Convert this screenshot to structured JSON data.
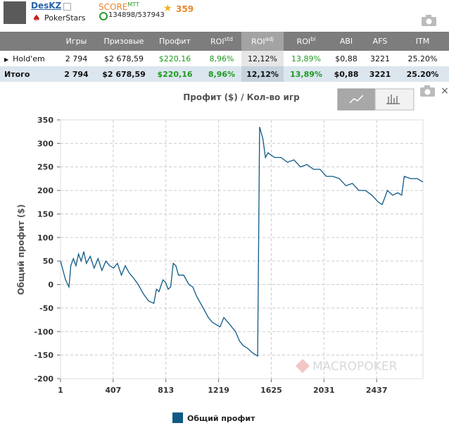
{
  "header": {
    "player": "DesKZ",
    "room": "PokerStars",
    "score_label": "SCORE",
    "score_sup": "MTT",
    "rank": "134898/537943",
    "stars": "359"
  },
  "table": {
    "columns": [
      {
        "base": "Игры"
      },
      {
        "base": "Призовые"
      },
      {
        "base": "Профит"
      },
      {
        "base": "ROI",
        "sup": "std"
      },
      {
        "base": "ROI",
        "sup": "adj"
      },
      {
        "base": "ROI",
        "sup": "bi"
      },
      {
        "base": "ABI"
      },
      {
        "base": "AFS"
      },
      {
        "base": "ITM"
      }
    ],
    "rows": [
      [
        "Hold'em",
        "2 794",
        "$2 678,59",
        "$220,16",
        "8,96%",
        "12,12%",
        "13,89%",
        "$0,88",
        "3221",
        "25.20%"
      ],
      [
        "Итого",
        "2 794",
        "$2 678,59",
        "$220,16",
        "8,96%",
        "12,12%",
        "13,89%",
        "$0,88",
        "3221",
        "25.20%"
      ]
    ]
  },
  "chart_data": {
    "type": "line",
    "title": "Профит ($) / Кол-во игр",
    "y_label": "Общий профит ($)",
    "watermark": "MACROPOKER",
    "grid": true,
    "x": [
      1,
      20,
      40,
      66,
      80,
      100,
      120,
      140,
      160,
      180,
      200,
      230,
      260,
      290,
      320,
      350,
      380,
      410,
      440,
      470,
      500,
      530,
      560,
      600,
      640,
      680,
      720,
      740,
      760,
      790,
      810,
      830,
      850,
      870,
      890,
      910,
      950,
      990,
      1020,
      1050,
      1080,
      1110,
      1140,
      1170,
      1200,
      1230,
      1260,
      1290,
      1320,
      1350,
      1380,
      1410,
      1440,
      1480,
      1520,
      1525,
      1535,
      1560,
      1580,
      1600,
      1650,
      1700,
      1750,
      1800,
      1850,
      1900,
      1950,
      2000,
      2050,
      2100,
      2150,
      2200,
      2250,
      2300,
      2350,
      2400,
      2450,
      2480,
      2520,
      2560,
      2600,
      2630,
      2650,
      2700,
      2750,
      2794
    ],
    "series": [
      {
        "name": "Общий профит",
        "color": "#0e5a85",
        "values": [
          50,
          30,
          10,
          -5,
          40,
          55,
          40,
          65,
          50,
          70,
          45,
          60,
          35,
          55,
          30,
          50,
          40,
          35,
          45,
          20,
          40,
          25,
          15,
          0,
          -20,
          -35,
          -40,
          -10,
          -15,
          10,
          5,
          -10,
          -5,
          45,
          40,
          20,
          20,
          0,
          -5,
          -25,
          -40,
          -55,
          -70,
          -80,
          -85,
          -90,
          -70,
          -80,
          -90,
          -100,
          -120,
          -130,
          -135,
          -145,
          -152,
          5,
          335,
          310,
          270,
          280,
          270,
          270,
          260,
          265,
          250,
          255,
          245,
          245,
          230,
          230,
          225,
          210,
          215,
          200,
          200,
          190,
          175,
          170,
          200,
          190,
          195,
          190,
          230,
          225,
          225,
          218
        ]
      }
    ],
    "xlim": [
      1,
      2794
    ],
    "xticks": [
      1,
      407,
      813,
      1219,
      1625,
      2031,
      2437
    ],
    "ylim": [
      -200,
      350
    ],
    "yticks": [
      -200,
      -150,
      -100,
      -50,
      0,
      50,
      100,
      150,
      200,
      250,
      300,
      350
    ]
  }
}
